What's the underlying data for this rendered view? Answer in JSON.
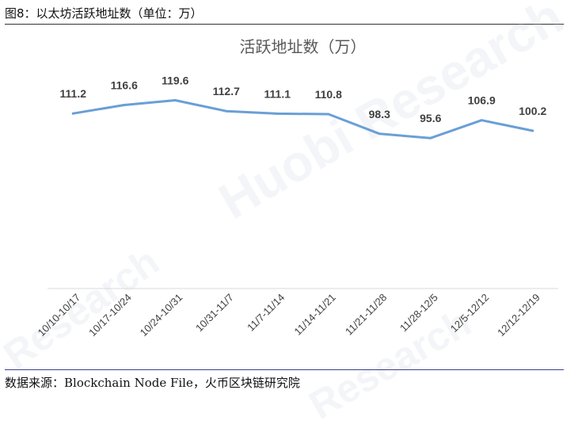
{
  "figure": {
    "caption": "图8：以太坊活跃地址数（单位：万）",
    "source": "数据来源：Blockchain Node File，火币区块链研究院",
    "watermark_text": "Huobi Research",
    "watermark_text_2": "Research"
  },
  "colors": {
    "line": "#6a9fd6",
    "axis": "#d9d9d9",
    "label": "#404040",
    "title": "#595959",
    "rule": "#3b3f8a"
  },
  "chart_data": {
    "type": "line",
    "title": "活跃地址数（万）",
    "categories": [
      "10/10-10/17",
      "10/17-10/24",
      "10/24-10/31",
      "10/31-11/7",
      "11/7-11/14",
      "11/14-11/21",
      "11/21-11/28",
      "11/28-12/5",
      "12/5-12/12",
      "12/12-12/19"
    ],
    "series": [
      {
        "values": [
          111.2,
          116.6,
          119.6,
          112.7,
          111.1,
          110.8,
          98.3,
          95.6,
          106.9,
          100.2
        ],
        "data_labels": [
          "111.2",
          "116.6",
          "119.6",
          "112.7",
          "111.1",
          "110.8",
          "98.3",
          "95.6",
          "106.9",
          "100.2"
        ]
      }
    ],
    "ylim": [
      0,
      140
    ],
    "grid": false,
    "legend": "none"
  }
}
